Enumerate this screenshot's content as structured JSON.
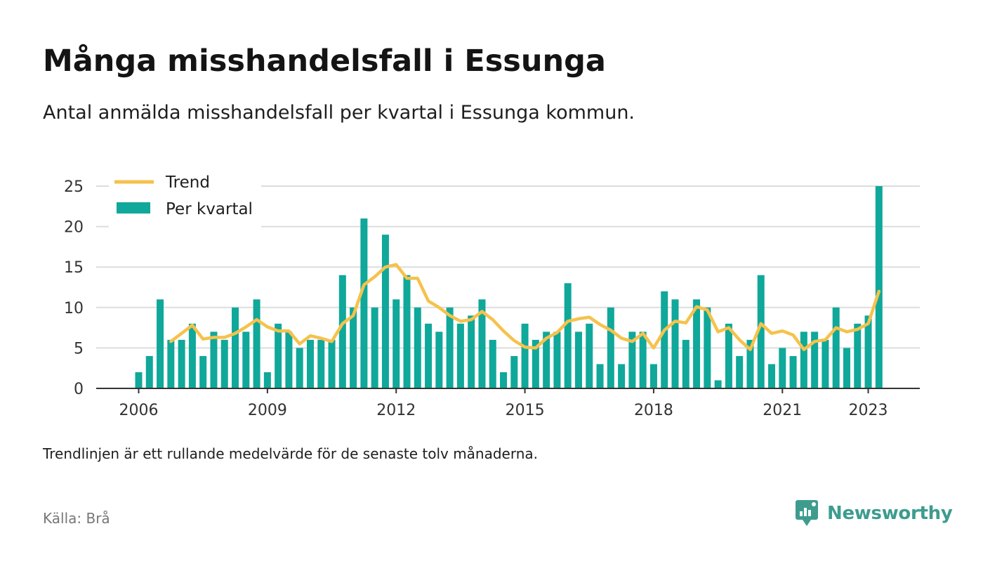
{
  "header": {
    "title": "Många misshandelsfall i Essunga",
    "subtitle": "Antal anmälda misshandelsfall per kvartal i Essunga kommun."
  },
  "chart_data": {
    "type": "bar",
    "x_start": "2006 Q1",
    "ylim": [
      0,
      25
    ],
    "yticks": [
      0,
      5,
      10,
      15,
      20,
      25
    ],
    "y_tick_labels": [
      "0",
      "5",
      "10",
      "15",
      "20",
      "25"
    ],
    "x_tick_labels": [
      "2006",
      "2009",
      "2012",
      "2015",
      "2018",
      "2021",
      "2023"
    ],
    "grid": true,
    "legend": {
      "placement": "top-left",
      "entries": [
        "Trend",
        "Per kvartal"
      ]
    },
    "colors": {
      "bar": "#0fa89a",
      "trend": "#f5c24c",
      "grid": "#dddddd",
      "axis": "#333333"
    },
    "series": [
      {
        "name": "Per kvartal",
        "type": "bar",
        "values": [
          2,
          4,
          11,
          6,
          6,
          8,
          4,
          7,
          6,
          10,
          7,
          11,
          2,
          8,
          7,
          5,
          6,
          6,
          6,
          14,
          10,
          21,
          10,
          19,
          11,
          14,
          10,
          8,
          7,
          10,
          8,
          9,
          11,
          6,
          2,
          4,
          8,
          6,
          7,
          7,
          13,
          7,
          8,
          3,
          10,
          3,
          7,
          7,
          3,
          12,
          11,
          6,
          11,
          10,
          1,
          8,
          4,
          6,
          14,
          3,
          5,
          4,
          7,
          7,
          6,
          10,
          5,
          8,
          9,
          25
        ]
      },
      {
        "name": "Trend",
        "type": "line",
        "start_index": 3,
        "values": [
          5.8,
          6.8,
          7.8,
          6.1,
          6.3,
          6.3,
          6.8,
          7.6,
          8.5,
          7.6,
          7.1,
          7.1,
          5.5,
          6.5,
          6.2,
          5.8,
          8.0,
          9.0,
          12.8,
          13.8,
          15.0,
          15.3,
          13.6,
          13.6,
          10.8,
          10.0,
          9.0,
          8.3,
          8.5,
          9.5,
          8.5,
          7.1,
          5.9,
          5.1,
          5.0,
          6.2,
          6.9,
          8.3,
          8.6,
          8.8,
          7.9,
          7.2,
          6.2,
          5.8,
          6.8,
          5.0,
          7.2,
          8.3,
          8.1,
          10.1,
          9.7,
          7.0,
          7.5,
          6.0,
          4.8,
          8.0,
          6.8,
          7.1,
          6.6,
          4.8,
          5.8,
          6.0,
          7.5,
          7.0,
          7.3,
          8.0,
          12.0
        ]
      }
    ]
  },
  "footer": {
    "note": "Trendlinjen är ett rullande medelvärde för de senaste tolv månaderna.",
    "source": "Källa: Brå",
    "brand": "Newsworthy"
  }
}
